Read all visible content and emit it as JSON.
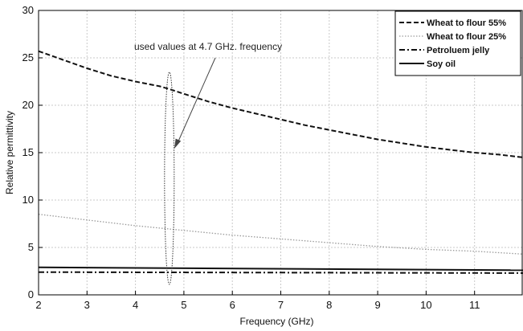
{
  "chart_data": {
    "type": "line",
    "title": "",
    "xlabel": "Frequency (GHz)",
    "ylabel": "Relative permittivity",
    "xlim": [
      2,
      12
    ],
    "ylim": [
      0,
      30
    ],
    "xticks": [
      2,
      3,
      4,
      5,
      6,
      7,
      8,
      9,
      10,
      11
    ],
    "yticks": [
      0,
      5,
      10,
      15,
      20,
      25,
      30
    ],
    "grid": true,
    "legend_position": "top-right",
    "series": [
      {
        "name": "Wheat to flour 55%",
        "color": "#111111",
        "style": "dashed",
        "x": [
          2,
          2.5,
          3,
          3.5,
          4,
          4.5,
          4.7,
          5,
          5.5,
          6,
          6.5,
          7,
          7.5,
          8,
          8.5,
          9,
          9.5,
          10,
          10.5,
          11,
          11.5,
          12
        ],
        "y": [
          25.7,
          24.8,
          23.9,
          23.1,
          22.5,
          22.0,
          21.7,
          21.2,
          20.4,
          19.7,
          19.1,
          18.5,
          17.9,
          17.4,
          16.9,
          16.4,
          16.0,
          15.6,
          15.3,
          15.0,
          14.8,
          14.5
        ]
      },
      {
        "name": "Wheat to flour 25%",
        "color": "#9a9a9a",
        "style": "dotted",
        "x": [
          2,
          3,
          4,
          5,
          6,
          7,
          8,
          9,
          10,
          11,
          12
        ],
        "y": [
          8.5,
          7.9,
          7.3,
          6.8,
          6.3,
          5.9,
          5.5,
          5.1,
          4.8,
          4.6,
          4.3
        ]
      },
      {
        "name": "Petroluem jelly",
        "color": "#111111",
        "style": "dashdot",
        "x": [
          2,
          12
        ],
        "y": [
          2.4,
          2.3
        ]
      },
      {
        "name": "Soy oil",
        "color": "#111111",
        "style": "solid",
        "x": [
          2,
          12
        ],
        "y": [
          2.9,
          2.6
        ]
      }
    ],
    "annotation": {
      "text": "used values at 4.7 GHz. frequency",
      "x": 4.7,
      "ellipse_y": [
        1.1,
        23.5
      ]
    }
  }
}
